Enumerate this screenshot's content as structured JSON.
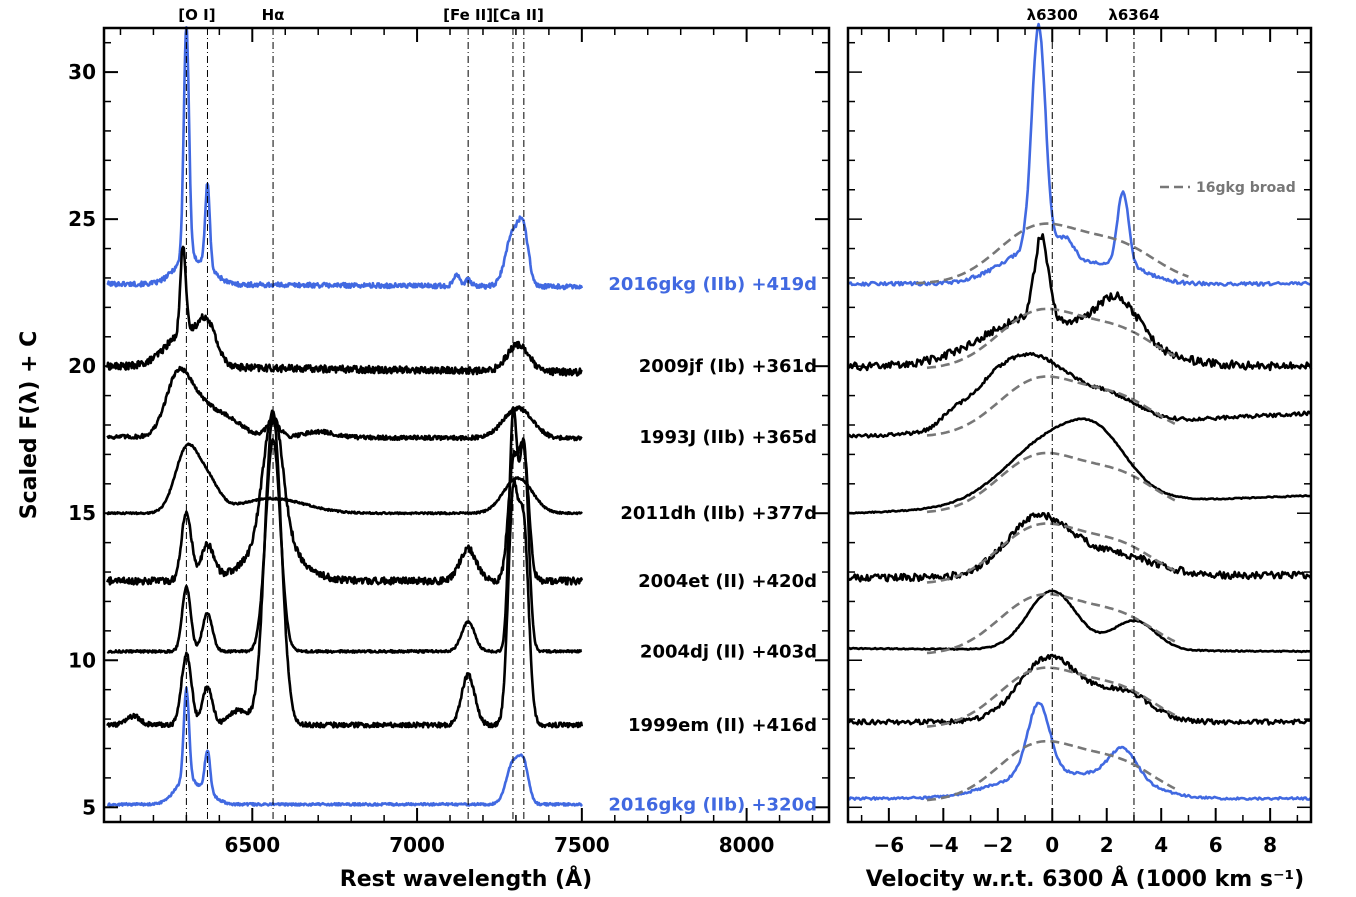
{
  "colors": {
    "blue": "#4169e1",
    "black": "#000000",
    "gray": "#777777"
  },
  "chart_data": [
    {
      "type": "line",
      "panel": "left",
      "xlabel": "Rest wavelength (Å)",
      "ylabel": "Scaled F(λ) + C",
      "xlim": [
        6050,
        8250
      ],
      "ylim": [
        4.5,
        31.5
      ],
      "xticks": [
        6500,
        7000,
        7500,
        8000
      ],
      "xtick_labels": [
        "6500",
        "7000",
        "7500",
        "8000"
      ],
      "yticks": [
        5,
        10,
        15,
        20,
        25,
        30
      ],
      "ytick_labels": [
        "5",
        "10",
        "15",
        "20",
        "25",
        "30"
      ],
      "line_markers": [
        {
          "label": "[O I]",
          "x": [
            6300,
            6364
          ],
          "label_x": 6332
        },
        {
          "label": "Hα",
          "x": [
            6563
          ],
          "label_x": 6563
        },
        {
          "label": "[Fe II]",
          "x": [
            7155
          ],
          "label_x": 7155
        },
        {
          "label": "[Ca II]",
          "x": [
            7291,
            7324
          ],
          "label_x": 7307
        }
      ],
      "series": [
        {
          "name": "2016gkg (IIb) +419d",
          "color": "blue",
          "baseline": 22.8,
          "end": 22.7,
          "noise": 0.08,
          "features": [
            [
              6300,
              7.9,
              8
            ],
            [
              6300,
              0.8,
              40
            ],
            [
              6364,
              2.8,
              7
            ],
            [
              6364,
              0.4,
              35
            ],
            [
              7291,
              1.8,
              22
            ],
            [
              7324,
              1.6,
              15
            ],
            [
              7120,
              0.4,
              10
            ],
            [
              7155,
              0.2,
              10
            ]
          ]
        },
        {
          "name": "2009jf (Ib) +361d",
          "color": "black",
          "baseline": 20.0,
          "end": 19.8,
          "noise": 0.12,
          "features": [
            [
              6290,
              3.0,
              8
            ],
            [
              6300,
              1.2,
              60
            ],
            [
              6364,
              1.0,
              25
            ],
            [
              7291,
              0.6,
              28
            ],
            [
              7324,
              0.5,
              25
            ]
          ]
        },
        {
          "name": "1993J (IIb) +365d",
          "color": "black",
          "baseline": 17.6,
          "end": 17.55,
          "noise": 0.07,
          "features": [
            [
              6270,
              1.5,
              35
            ],
            [
              6320,
              1.2,
              50
            ],
            [
              6420,
              0.6,
              50
            ],
            [
              6563,
              0.5,
              20
            ],
            [
              6700,
              0.2,
              45
            ],
            [
              7291,
              0.6,
              40
            ],
            [
              7324,
              0.5,
              40
            ]
          ]
        },
        {
          "name": "2011dh (IIb) +377d",
          "color": "black",
          "baseline": 15.0,
          "end": 15.0,
          "noise": 0.03,
          "features": [
            [
              6300,
              2.1,
              35
            ],
            [
              6364,
              1.0,
              35
            ],
            [
              6560,
              0.5,
              100
            ],
            [
              7291,
              0.7,
              40
            ],
            [
              7324,
              0.6,
              40
            ]
          ]
        },
        {
          "name": "2004et (II) +420d",
          "color": "black",
          "baseline": 12.7,
          "end": 12.7,
          "noise": 0.12,
          "features": [
            [
              6300,
              2.3,
              15
            ],
            [
              6364,
              1.2,
              20
            ],
            [
              6563,
              4.5,
              30
            ],
            [
              6563,
              1.2,
              80
            ],
            [
              7155,
              1.1,
              25
            ],
            [
              7291,
              3.8,
              15
            ],
            [
              7324,
              4.2,
              15
            ]
          ]
        },
        {
          "name": "2004dj (II) +403d",
          "color": "black",
          "baseline": 10.3,
          "end": 10.3,
          "noise": 0.04,
          "features": [
            [
              6300,
              2.2,
              13
            ],
            [
              6364,
              1.3,
              15
            ],
            [
              6563,
              7.2,
              22
            ],
            [
              7155,
              1.0,
              20
            ],
            [
              7291,
              7.8,
              12
            ],
            [
              7324,
              7.0,
              14
            ]
          ]
        },
        {
          "name": "1999em (II) +416d",
          "color": "black",
          "baseline": 7.8,
          "end": 7.8,
          "noise": 0.08,
          "features": [
            [
              6300,
              2.4,
              15
            ],
            [
              6364,
              1.3,
              15
            ],
            [
              6563,
              10.5,
              25
            ],
            [
              6460,
              0.5,
              30
            ],
            [
              7155,
              1.7,
              20
            ],
            [
              7291,
              7.5,
              15
            ],
            [
              7324,
              6.5,
              15
            ],
            [
              6140,
              0.3,
              20
            ]
          ]
        },
        {
          "name": "2016gkg (IIb) +320d",
          "color": "blue",
          "baseline": 5.1,
          "end": 5.1,
          "noise": 0.04,
          "features": [
            [
              6300,
              3.1,
              8
            ],
            [
              6300,
              0.8,
              35
            ],
            [
              6364,
              1.4,
              8
            ],
            [
              6364,
              0.3,
              30
            ],
            [
              7291,
              1.4,
              20
            ],
            [
              7324,
              1.2,
              15
            ]
          ]
        }
      ]
    },
    {
      "type": "line",
      "panel": "right",
      "xlabel": "Velocity w.r.t. 6300 Å (1000 km s⁻¹)",
      "xlim": [
        -7.5,
        9.5
      ],
      "ylim": [
        4.5,
        31.5
      ],
      "xticks": [
        -6,
        -4,
        -2,
        0,
        2,
        4,
        6,
        8
      ],
      "xtick_labels": [
        "−6",
        "−4",
        "−2",
        "0",
        "2",
        "4",
        "6",
        "8"
      ],
      "line_markers": [
        {
          "label": "λ6300",
          "x": 0
        },
        {
          "label": "λ6364",
          "x": 3.0
        }
      ],
      "legend": {
        "label": "16gkg broad",
        "style": "dashed",
        "color": "gray",
        "position": "top-right"
      },
      "series": [
        {
          "name": "2016gkg (IIb) +419d",
          "color": "blue",
          "baseline": 22.8,
          "end": 22.8,
          "noise": 0.06,
          "features": [
            [
              -0.5,
              7.6,
              0.25
            ],
            [
              -0.5,
              1.2,
              1.3
            ],
            [
              0.5,
              0.6,
              0.3
            ],
            [
              2.6,
              2.5,
              0.2
            ],
            [
              2.5,
              0.6,
              1.0
            ]
          ],
          "broad": {
            "baseline": 22.8,
            "x0": -5,
            "x1": 5,
            "features": [
              [
                -0.5,
                1.9,
                1.5
              ],
              [
                2.5,
                1.2,
                1.4
              ]
            ]
          }
        },
        {
          "name": "2009jf (Ib) +361d",
          "color": "black",
          "baseline": 20.0,
          "end": 20.0,
          "noise": 0.14,
          "features": [
            [
              -0.4,
              2.8,
              0.25
            ],
            [
              -0.9,
              1.5,
              1.8
            ],
            [
              2.4,
              1.6,
              0.8
            ],
            [
              2.4,
              0.5,
              2.0
            ]
          ],
          "broad": {
            "baseline": 19.9,
            "x0": -4.6,
            "x1": 4.6,
            "features": [
              [
                -0.5,
                1.9,
                1.5
              ],
              [
                2.5,
                1.2,
                1.4
              ]
            ]
          }
        },
        {
          "name": "1993J (IIb) +365d",
          "color": "black",
          "baseline": 17.6,
          "end": 18.4,
          "noise": 0.06,
          "features": [
            [
              -0.5,
              2.2,
              1.3
            ],
            [
              -2.3,
              1.0,
              1.0
            ],
            [
              2.2,
              0.8,
              1.0
            ],
            [
              -3.7,
              0.3,
              0.4
            ]
          ],
          "broad": {
            "baseline": 17.6,
            "x0": -4.6,
            "x1": 4.6,
            "features": [
              [
                -0.5,
                1.9,
                1.5
              ],
              [
                2.5,
                1.2,
                1.4
              ]
            ]
          }
        },
        {
          "name": "2011dh (IIb) +377d",
          "color": "black",
          "baseline": 15.0,
          "end": 15.6,
          "noise": 0.02,
          "features": [
            [
              0.2,
              2.4,
              1.8
            ],
            [
              1.8,
              1.0,
              1.0
            ]
          ],
          "broad": {
            "baseline": 15.0,
            "x0": -4.6,
            "x1": 4.6,
            "features": [
              [
                -0.5,
                1.9,
                1.5
              ],
              [
                2.5,
                1.2,
                1.4
              ]
            ]
          }
        },
        {
          "name": "2004et (II) +420d",
          "color": "black",
          "baseline": 12.8,
          "end": 12.9,
          "noise": 0.12,
          "features": [
            [
              -0.5,
              2.0,
              1.2
            ],
            [
              2.4,
              0.7,
              1.4
            ]
          ],
          "broad": {
            "baseline": 12.6,
            "x0": -4.6,
            "x1": 4.6,
            "features": [
              [
                -0.5,
                1.9,
                1.5
              ],
              [
                2.5,
                1.2,
                1.4
              ]
            ]
          }
        },
        {
          "name": "2004dj (II) +403d",
          "color": "black",
          "baseline": 10.4,
          "end": 10.3,
          "noise": 0.02,
          "features": [
            [
              0.0,
              2.0,
              0.9
            ],
            [
              3.0,
              1.0,
              0.8
            ]
          ],
          "broad": {
            "baseline": 10.2,
            "x0": -4.6,
            "x1": 4.6,
            "features": [
              [
                -0.5,
                1.9,
                1.5
              ],
              [
                2.5,
                1.2,
                1.4
              ]
            ]
          }
        },
        {
          "name": "1999em (II) +416d",
          "color": "black",
          "baseline": 7.9,
          "end": 7.9,
          "noise": 0.08,
          "features": [
            [
              -0.1,
              2.2,
              1.1
            ],
            [
              2.6,
              1.0,
              1.0
            ]
          ],
          "broad": {
            "baseline": 7.7,
            "x0": -4.6,
            "x1": 4.6,
            "features": [
              [
                -0.5,
                1.9,
                1.5
              ],
              [
                2.5,
                1.2,
                1.4
              ]
            ]
          }
        },
        {
          "name": "2016gkg (IIb) +320d",
          "color": "blue",
          "baseline": 5.3,
          "end": 5.3,
          "noise": 0.04,
          "features": [
            [
              -0.5,
              2.4,
              0.4
            ],
            [
              -0.5,
              0.8,
              1.6
            ],
            [
              2.6,
              1.0,
              0.5
            ],
            [
              2.4,
              0.6,
              1.3
            ]
          ],
          "broad": {
            "baseline": 5.2,
            "x0": -4.6,
            "x1": 4.6,
            "features": [
              [
                -0.5,
                1.9,
                1.5
              ],
              [
                2.5,
                1.2,
                1.4
              ]
            ]
          }
        }
      ]
    }
  ]
}
